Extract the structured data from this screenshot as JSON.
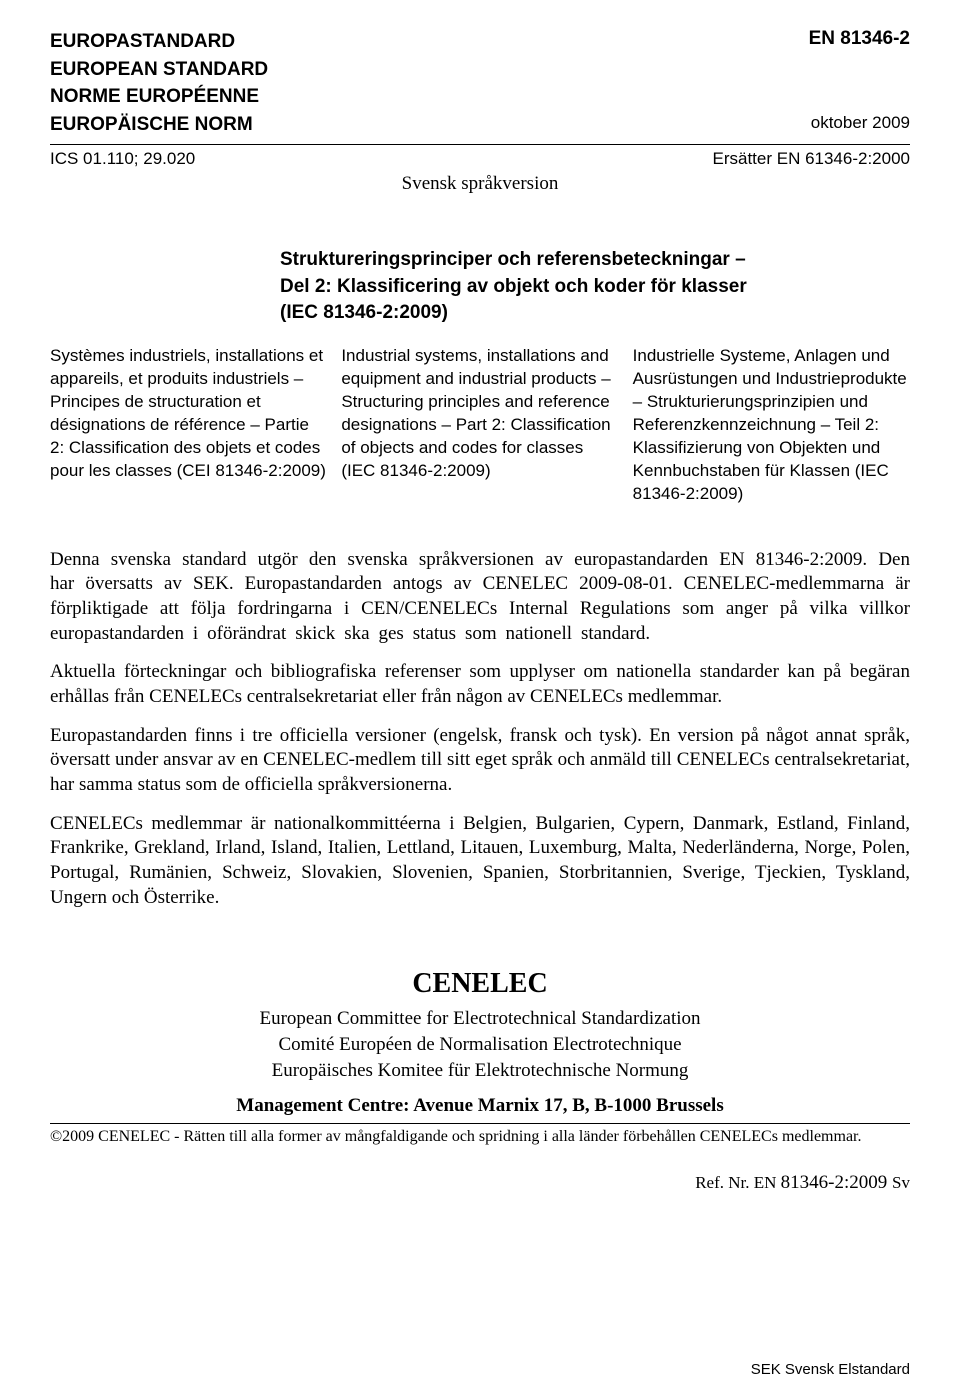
{
  "header": {
    "left_lines": [
      "EUROPASTANDARD",
      "EUROPEAN STANDARD",
      "NORME EUROPÉENNE",
      "EUROPÄISCHE NORM"
    ],
    "right_top": "EN 81346-2",
    "right_bottom": "oktober 2009"
  },
  "ics": {
    "left": "ICS 01.110; 29.020",
    "right": "Ersätter EN 61346-2:2000"
  },
  "svensk": "Svensk språkversion",
  "title": {
    "line1": "Struktureringsprinciper och referensbeteckningar –",
    "line2": "Del 2: Klassificering av objekt och koder för klasser",
    "line3": "(IEC 81346-2:2009)"
  },
  "columns": {
    "fr": "Systèmes industriels, installations et appareils, et produits industriels – Principes de structuration et désignations de référence – Partie 2: Classification des objets et codes pour les classes (CEI 81346-2:2009)",
    "en": "Industrial systems, installations and equipment and industrial products – Structuring principles and reference designations – Part 2: Classification of objects and codes for classes (IEC 81346-2:2009)",
    "de": "Industrielle Systeme, Anlagen und Ausrüstungen und Industrieprodukte – Strukturierungsprinzipien und Referenzkennzeichnung – Teil 2: Klassifizierung von Objekten und Kennbuchstaben für Klassen (IEC 81346-2:2009)"
  },
  "body": {
    "p1": "Denna svenska standard utgör den svenska språkversionen av europastandarden EN 81346-2:2009. Den har översatts av SEK. Europastandarden antogs av CENELEC 2009-08-01. CENELEC-medlemmarna är förpliktigade att följa fordringarna i CEN/CENELECs Internal Regulations som anger på vilka villkor europastandarden i oförändrat skick ska ges status som nationell standard.",
    "p2": "Aktuella förteckningar och bibliografiska referenser som upplyser om nationella standarder kan på begäran erhållas från CENELECs centralsekretariat eller från någon av CENELECs medlemmar.",
    "p3": "Europastandarden finns i tre officiella versioner (engelsk, fransk och tysk). En version på något annat språk, översatt under ansvar av en CENELEC-medlem till sitt eget språk och anmäld till CENELECs centralsekretariat, har samma status som de officiella språkversionerna.",
    "p4": "CENELECs medlemmar är nationalkommittéerna i Belgien, Bulgarien, Cypern, Danmark, Estland, Finland, Frankrike, Grekland, Irland, Island, Italien, Lettland, Litauen, Luxemburg, Malta, Nederländerna, Norge, Polen, Portugal, Rumänien, Schweiz, Slovakien, Slovenien, Spanien, Storbritannien, Sverige, Tjeckien, Tyskland, Ungern och Österrike."
  },
  "cenelec": {
    "title": "CENELEC",
    "line1": "European Committee for Electrotechnical Standardization",
    "line2": "Comité Européen de Normalisation Electrotechnique",
    "line3": "Europäisches Komitee für Elektrotechnische Normung",
    "mgmt": "Management Centre: Avenue Marnix 17, B, B-1000 Brussels"
  },
  "copyright": "©2009 CENELEC - Rätten till alla former av mångfaldigande och spridning i alla länder förbehållen CENELECs medlemmar.",
  "ref": {
    "prefix": "Ref. Nr. EN ",
    "num": "81346-2:2009 ",
    "suffix": "Sv"
  },
  "footer": "SEK Svensk Elstandard"
}
